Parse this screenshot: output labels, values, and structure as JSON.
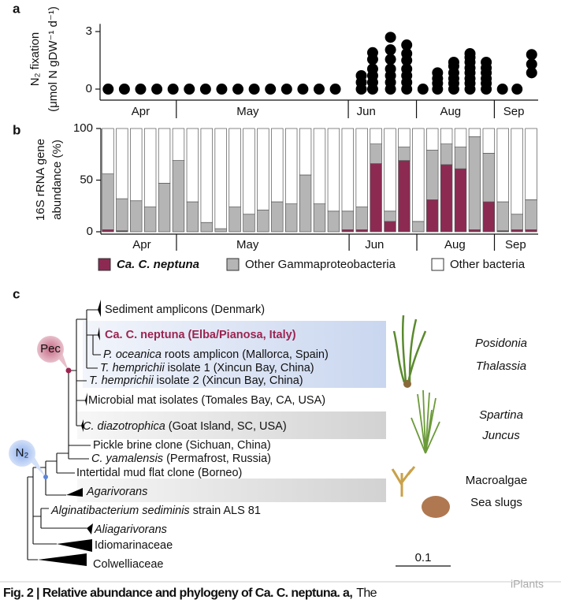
{
  "chart_data": [
    {
      "type": "scatter",
      "panel": "a",
      "color": "#000000",
      "ylabel": [
        "N₂ fixation",
        "(μmol N gDW⁻¹ d⁻¹)"
      ],
      "x": [
        1,
        2,
        3,
        4,
        5,
        6,
        7,
        8,
        9,
        10,
        11,
        12,
        13,
        14,
        15,
        16.6,
        16.6,
        16.6,
        17.3,
        17.3,
        17.3,
        17.3,
        17.3,
        17.3,
        18.4,
        18.4,
        18.4,
        18.4,
        18.4,
        18.4,
        18.4,
        19.4,
        19.4,
        19.4,
        19.4,
        19.4,
        19.4,
        19.4,
        20.4,
        21.3,
        21.3,
        21.3,
        21.3,
        22.3,
        22.3,
        22.3,
        22.3,
        22.3,
        22.3,
        23.3,
        23.3,
        23.3,
        23.3,
        23.3,
        23.3,
        23.3,
        23.3,
        24.3,
        24.3,
        24.3,
        24.3,
        24.3,
        24.3,
        25.3,
        26.2,
        27.1,
        27.1,
        27.1
      ],
      "y": [
        0,
        0,
        0,
        0,
        0,
        0,
        0,
        0,
        0,
        0,
        0,
        0,
        0,
        0,
        0,
        0,
        0.35,
        0.7,
        0,
        0.35,
        0.7,
        1.05,
        1.55,
        1.9,
        0,
        0.35,
        0.7,
        1.05,
        1.55,
        2.05,
        2.7,
        0,
        0.35,
        0.7,
        1.05,
        1.5,
        1.85,
        2.3,
        0,
        0,
        0.3,
        0.55,
        0.85,
        0,
        0.3,
        0.55,
        0.85,
        1.2,
        1.4,
        0,
        0.3,
        0.55,
        0.85,
        1.1,
        1.4,
        1.65,
        1.85,
        0,
        0.3,
        0.55,
        0.85,
        1.1,
        1.4,
        0,
        0,
        0.85,
        1.3,
        1.8
      ],
      "xlim": [
        0.5,
        27.5
      ],
      "ylim": [
        -0.55,
        3.4
      ],
      "yticks": [
        0,
        3
      ],
      "xticks": [
        {
          "value": 3.0,
          "label": "Apr"
        },
        {
          "value": 9.6,
          "label": "May"
        },
        {
          "value": 16.9,
          "label": "Jun"
        },
        {
          "value": 22.1,
          "label": "Aug"
        },
        {
          "value": 26.0,
          "label": "Sep"
        }
      ],
      "month_boundaries": [
        5.2,
        15.8,
        20.0,
        24.8
      ]
    },
    {
      "type": "stacked_bar",
      "panel": "b",
      "ylabel": [
        "16S rRNA gene",
        "abundance (%)"
      ],
      "x": [
        1,
        2,
        3,
        4,
        5,
        6,
        7,
        8,
        9,
        10,
        11,
        12,
        13,
        14,
        15,
        16,
        17,
        18,
        19,
        20,
        21,
        22,
        23,
        24,
        25,
        26,
        27,
        28,
        29,
        30,
        31
      ],
      "series": [
        {
          "name": "Ca. C. neptuna",
          "color": "#8c2a52",
          "values": [
            2,
            1,
            0,
            0,
            0,
            0,
            0,
            0,
            0,
            0,
            0,
            0,
            0,
            0,
            0,
            0,
            0,
            2,
            2,
            66,
            10,
            69,
            0,
            31,
            65,
            61,
            2,
            29,
            1,
            2,
            2
          ]
        },
        {
          "name": "Other Gammaproteobacteria",
          "color": "#b5b5b5",
          "values": [
            54,
            31,
            30,
            24,
            47,
            69,
            29,
            9,
            3,
            24,
            17,
            21,
            29,
            27,
            55,
            27,
            20,
            18,
            22,
            19,
            10,
            13,
            10,
            48,
            20,
            21,
            90,
            47,
            28,
            15,
            29
          ]
        },
        {
          "name": "Other bacteria",
          "color": "#ffffff",
          "values": [
            44,
            68,
            70,
            76,
            53,
            31,
            71,
            91,
            97,
            76,
            83,
            79,
            71,
            73,
            45,
            73,
            80,
            80,
            76,
            15,
            80,
            18,
            90,
            21,
            15,
            18,
            8,
            24,
            71,
            83,
            69
          ]
        }
      ],
      "xlim": [
        0.5,
        31.5
      ],
      "ylim": [
        0,
        100
      ],
      "yticks": [
        0,
        50,
        100
      ],
      "xticks": [
        {
          "value": 3.4,
          "label": "Apr"
        },
        {
          "value": 10.9,
          "label": "May"
        },
        {
          "value": 19.9,
          "label": "Jun"
        },
        {
          "value": 25.6,
          "label": "Aug"
        },
        {
          "value": 29.9,
          "label": "Sep"
        }
      ],
      "month_boundaries": [
        5.86,
        18.1,
        22.9,
        28.4
      ]
    }
  ],
  "panel_c": {
    "letter": "c",
    "leaves": [
      {
        "label": "Sediment amplicons (Denmark)"
      },
      {
        "label": "Ca. C. neptuna (Elba/Pianosa, Italy)"
      },
      {
        "italic": "P. oceanica",
        "label": "roots amplicon (Mallorca, Spain)"
      },
      {
        "italic": "T. hemprichii",
        "label": "isolate 1 (Xincun Bay, China)"
      },
      {
        "italic": "T. hemprichii",
        "label": "isolate 2 (Xincun Bay, China)"
      },
      {
        "label": "Microbial mat isolates (Tomales Bay, CA, USA)"
      },
      {
        "italic": "C. diazotrophica",
        "label": "(Goat Island, SC, USA)"
      },
      {
        "label": "Pickle brine clone (Sichuan, China)"
      },
      {
        "italic": "C. yamalensis",
        "label": "(Permafrost, Russia)"
      },
      {
        "label": "Intertidal mud flat clone (Borneo)"
      },
      {
        "italic": "Agarivorans"
      },
      {
        "italic": "Alginatibacterium sediminis",
        "label": "strain ALS 81"
      },
      {
        "italic": "Aliagarivorans"
      },
      {
        "label": "Idiomarinaceae"
      },
      {
        "label": "Colwelliaceae"
      }
    ],
    "nodes": [
      "Pec",
      "N₂"
    ],
    "habitats": [
      "Posidonia",
      "Thalassia",
      "Spartina",
      "Juncus",
      "Macroalgae",
      "Sea slugs"
    ],
    "scale_bar": "0.1"
  },
  "caption": {
    "bold": "Fig. 2 | Relative abundance and phylogeny of Ca. C. neptuna. a,",
    "text": "The"
  },
  "watermark": "iPlants"
}
